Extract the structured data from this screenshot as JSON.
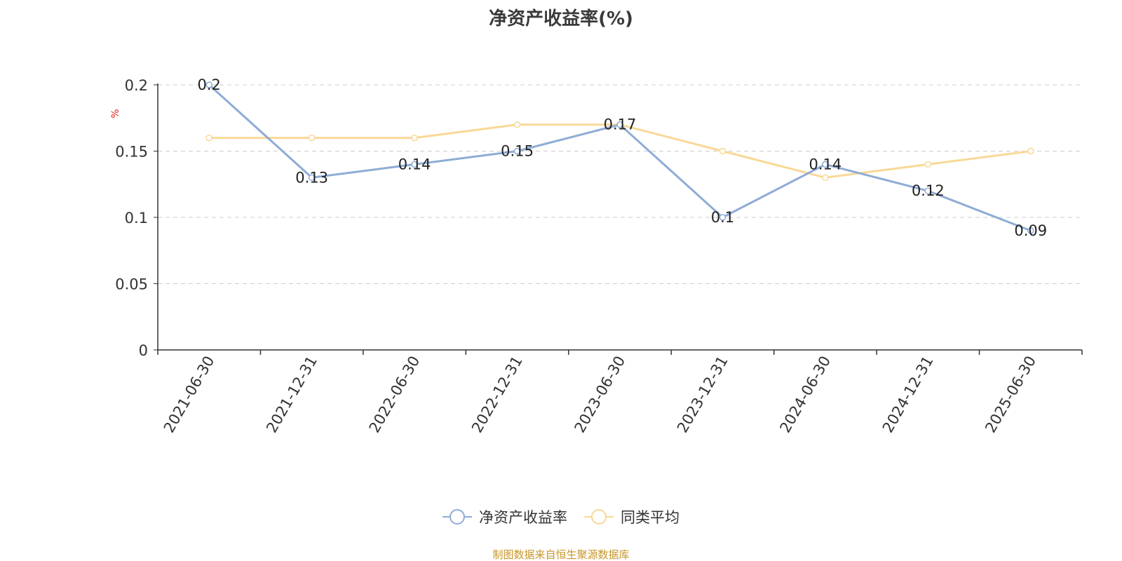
{
  "chart_data": {
    "type": "line",
    "title": "净资产收益率(%)",
    "ylabel": "%",
    "xlabel": "",
    "categories": [
      "2021-06-30",
      "2021-12-31",
      "2022-06-30",
      "2022-12-31",
      "2023-06-30",
      "2023-12-31",
      "2024-06-30",
      "2024-12-31",
      "2025-06-30"
    ],
    "ylim": [
      0,
      0.2
    ],
    "yticks": [
      "0",
      "0.05",
      "0.1",
      "0.15",
      "0.2"
    ],
    "grid": true,
    "legend_position": "bottom",
    "series": [
      {
        "name": "净资产收益率",
        "color": "#8eacd6",
        "values": [
          0.2,
          0.13,
          0.14,
          0.15,
          0.17,
          0.1,
          0.14,
          0.12,
          0.09
        ],
        "labels": [
          "0.2",
          "0.13",
          "0.14",
          "0.15",
          "0.17",
          "0.1",
          "0.14",
          "0.12",
          "0.09"
        ]
      },
      {
        "name": "同类平均",
        "color": "#f9d897",
        "values": [
          0.16,
          0.16,
          0.16,
          0.17,
          0.17,
          0.15,
          0.13,
          0.14,
          0.15
        ]
      }
    ]
  },
  "source_note": "制图数据来自恒生聚源数据库"
}
